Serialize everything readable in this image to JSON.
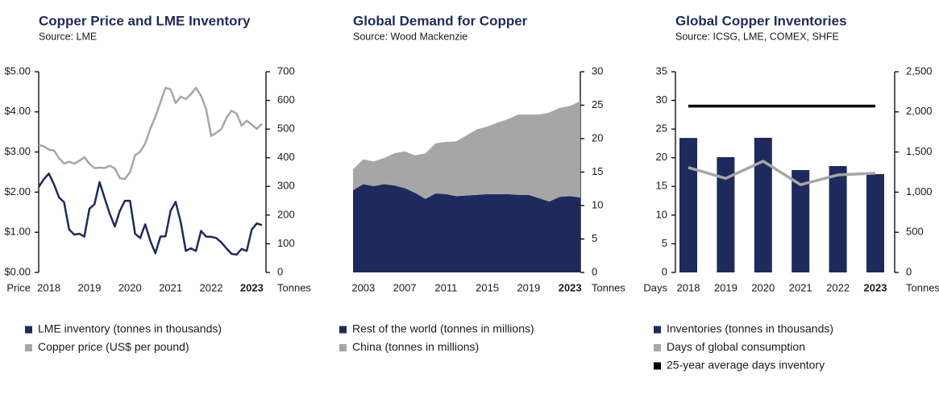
{
  "chart_data": [
    {
      "type": "line",
      "title": "Copper Price and LME Inventory",
      "subtitle": "Source: LME",
      "x": [
        2017.75,
        2017.875,
        2018,
        2018.125,
        2018.25,
        2018.375,
        2018.5,
        2018.625,
        2018.75,
        2018.875,
        2019,
        2019.125,
        2019.25,
        2019.375,
        2019.5,
        2019.625,
        2019.75,
        2019.875,
        2020,
        2020.125,
        2020.25,
        2020.375,
        2020.5,
        2020.625,
        2020.75,
        2020.875,
        2021,
        2021.125,
        2021.25,
        2021.375,
        2021.5,
        2021.625,
        2021.75,
        2021.875,
        2022,
        2022.125,
        2022.25,
        2022.375,
        2022.5,
        2022.625,
        2022.75,
        2022.875,
        2023,
        2023.125,
        2023.25
      ],
      "xlim": [
        2017.75,
        2023.35
      ],
      "xticks": [
        2018,
        2019,
        2020,
        2021,
        2022,
        2023
      ],
      "ylabel": "Price",
      "ylim": [
        0,
        5
      ],
      "yticks": [
        {
          "value": 0,
          "label": "$0.00"
        },
        {
          "value": 1,
          "label": "$1.00"
        },
        {
          "value": 2,
          "label": "$2.00"
        },
        {
          "value": 3,
          "label": "$3.00"
        },
        {
          "value": 4,
          "label": "$4.00"
        },
        {
          "value": 5,
          "label": "$5.00"
        }
      ],
      "y2label": "Tonnes",
      "y2lim": [
        0,
        700
      ],
      "y2ticks": [
        0,
        100,
        200,
        300,
        400,
        500,
        600,
        700
      ],
      "grid": false,
      "legend": "bottom",
      "series": [
        {
          "name": "LME inventory (tonnes in thousands)",
          "color": "#1f2a5c",
          "axis": "y2",
          "values": [
            298,
            325,
            345,
            308,
            262,
            245,
            150,
            132,
            135,
            125,
            222,
            238,
            315,
            259,
            205,
            160,
            215,
            250,
            250,
            135,
            120,
            168,
            110,
            67,
            125,
            126,
            215,
            246,
            175,
            75,
            84,
            75,
            145,
            125,
            124,
            120,
            105,
            84,
            65,
            62,
            82,
            75,
            150,
            171,
            165
          ]
        },
        {
          "name": "Copper price (US$ per pound)",
          "color": "#a6a6a6",
          "axis": "y",
          "values": [
            3.18,
            3.14,
            3.06,
            3.04,
            2.85,
            2.71,
            2.76,
            2.71,
            2.78,
            2.87,
            2.71,
            2.6,
            2.61,
            2.6,
            2.66,
            2.59,
            2.35,
            2.33,
            2.5,
            2.92,
            3.01,
            3.21,
            3.58,
            3.88,
            4.24,
            4.6,
            4.56,
            4.22,
            4.38,
            4.32,
            4.44,
            4.6,
            4.4,
            4.07,
            3.4,
            3.48,
            3.57,
            3.85,
            4.03,
            3.96,
            3.66,
            3.78,
            3.68,
            3.58,
            3.7
          ]
        }
      ]
    },
    {
      "type": "area",
      "stacked": true,
      "title": "Global Demand for Copper",
      "subtitle": "Source: Wood Mackenzie",
      "x": [
        2002,
        2003,
        2004,
        2005,
        2006,
        2007,
        2008,
        2009,
        2010,
        2011,
        2012,
        2013,
        2014,
        2015,
        2016,
        2017,
        2018,
        2019,
        2020,
        2021,
        2022,
        2023,
        2024
      ],
      "xlim": [
        2002,
        2024
      ],
      "xticks": [
        2003,
        2007,
        2011,
        2015,
        2019,
        2023
      ],
      "y2label": "Tonnes",
      "y2lim": [
        0,
        30
      ],
      "y2ticks": [
        0,
        5,
        10,
        15,
        20,
        25,
        30
      ],
      "grid": false,
      "legend": "bottom",
      "series": [
        {
          "name": "Rest of the world (tonnes in millions)",
          "color": "#1f2a5c",
          "axis": "y2",
          "values": [
            12.3,
            13.2,
            12.9,
            13.2,
            13.0,
            12.6,
            11.9,
            11.0,
            11.8,
            11.7,
            11.4,
            11.5,
            11.6,
            11.7,
            11.7,
            11.7,
            11.6,
            11.6,
            11.1,
            10.6,
            11.3,
            11.4,
            11.2
          ]
        },
        {
          "name": "China (tonnes in millions)",
          "color": "#a6a6a6",
          "axis": "y2",
          "values": [
            3.1,
            3.7,
            3.7,
            3.9,
            4.8,
            5.5,
            5.6,
            6.8,
            7.5,
            7.8,
            8.2,
            9.0,
            9.8,
            10.1,
            10.7,
            11.2,
            12.0,
            12.0,
            12.5,
            13.3,
            13.3,
            13.5,
            14.4
          ]
        }
      ]
    },
    {
      "type": "bar",
      "title": "Global Copper Inventories",
      "subtitle": "Source: ICSG, LME, COMEX, SHFE",
      "categories": [
        "2018",
        "2019",
        "2020",
        "2021",
        "2022",
        "2023"
      ],
      "ylabel": "Days",
      "ylim": [
        0,
        35
      ],
      "yticks": [
        0,
        5,
        10,
        15,
        20,
        25,
        30,
        35
      ],
      "y2label": "Tonnes",
      "y2lim": [
        0,
        2500
      ],
      "y2ticks": [
        0,
        500,
        {
          "value": 1000,
          "label": "1,000"
        },
        {
          "value": 1500,
          "label": "1,500"
        },
        {
          "value": 2000,
          "label": "2,000"
        },
        {
          "value": 2500,
          "label": "2,500"
        }
      ],
      "grid": false,
      "legend": "bottom",
      "series": [
        {
          "name": "Inventories (tonnes in thousands)",
          "type": "bar",
          "color": "#1f2a5c",
          "axis": "y2",
          "values": [
            1675,
            1436,
            1677,
            1275,
            1325,
            1225
          ]
        },
        {
          "name": "Days of global consumption",
          "type": "line",
          "color": "#a6a6a6",
          "axis": "y",
          "values": [
            18.3,
            16.4,
            19.4,
            15.3,
            17.0,
            17.3
          ]
        },
        {
          "name": "25-year average days inventory",
          "type": "line",
          "color": "#000000",
          "axis": "y",
          "values": [
            29,
            29,
            29,
            29,
            29,
            29
          ]
        }
      ]
    }
  ]
}
